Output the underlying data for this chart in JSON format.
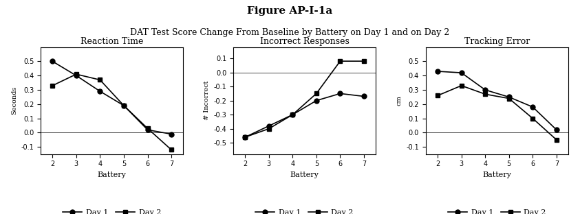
{
  "title_bold": "Figure AP-I-1a",
  "title_sub": "DAT Test Score Change From Baseline by Battery on Day 1 and on Day 2",
  "x": [
    2,
    3,
    4,
    5,
    6,
    7
  ],
  "rt_day1": [
    0.5,
    0.4,
    0.29,
    0.19,
    0.02,
    -0.01
  ],
  "rt_day2": [
    0.33,
    0.41,
    0.37,
    0.19,
    0.03,
    -0.12
  ],
  "rt_ylabel": "Seconds",
  "rt_ylim": [
    -0.15,
    0.6
  ],
  "rt_yticks": [
    -0.1,
    0.0,
    0.1,
    0.2,
    0.3,
    0.4,
    0.5
  ],
  "ir_day1": [
    -0.46,
    -0.38,
    -0.3,
    -0.2,
    -0.15,
    -0.17
  ],
  "ir_day2": [
    -0.46,
    -0.4,
    -0.3,
    -0.15,
    0.08,
    0.08
  ],
  "ir_ylabel": "# Incorrect",
  "ir_ylim": [
    -0.58,
    0.18
  ],
  "ir_yticks": [
    -0.5,
    -0.4,
    -0.3,
    -0.2,
    -0.1,
    0.0,
    0.1
  ],
  "te_day1": [
    0.43,
    0.42,
    0.3,
    0.25,
    0.18,
    0.02
  ],
  "te_day2": [
    0.26,
    0.33,
    0.27,
    0.24,
    0.1,
    -0.05
  ],
  "te_ylabel": "cm",
  "te_ylim": [
    -0.15,
    0.6
  ],
  "te_yticks": [
    -0.1,
    0.0,
    0.1,
    0.2,
    0.3,
    0.4,
    0.5
  ],
  "xlabel": "Battery",
  "panel_titles": [
    "Reaction Time",
    "Incorrect Responses",
    "Tracking Error"
  ],
  "line_color": "#000000",
  "marker_day1": "o",
  "marker_day2": "s",
  "legend_day1": "Day 1",
  "legend_day2": "Day 2",
  "bg_color": "#ffffff"
}
